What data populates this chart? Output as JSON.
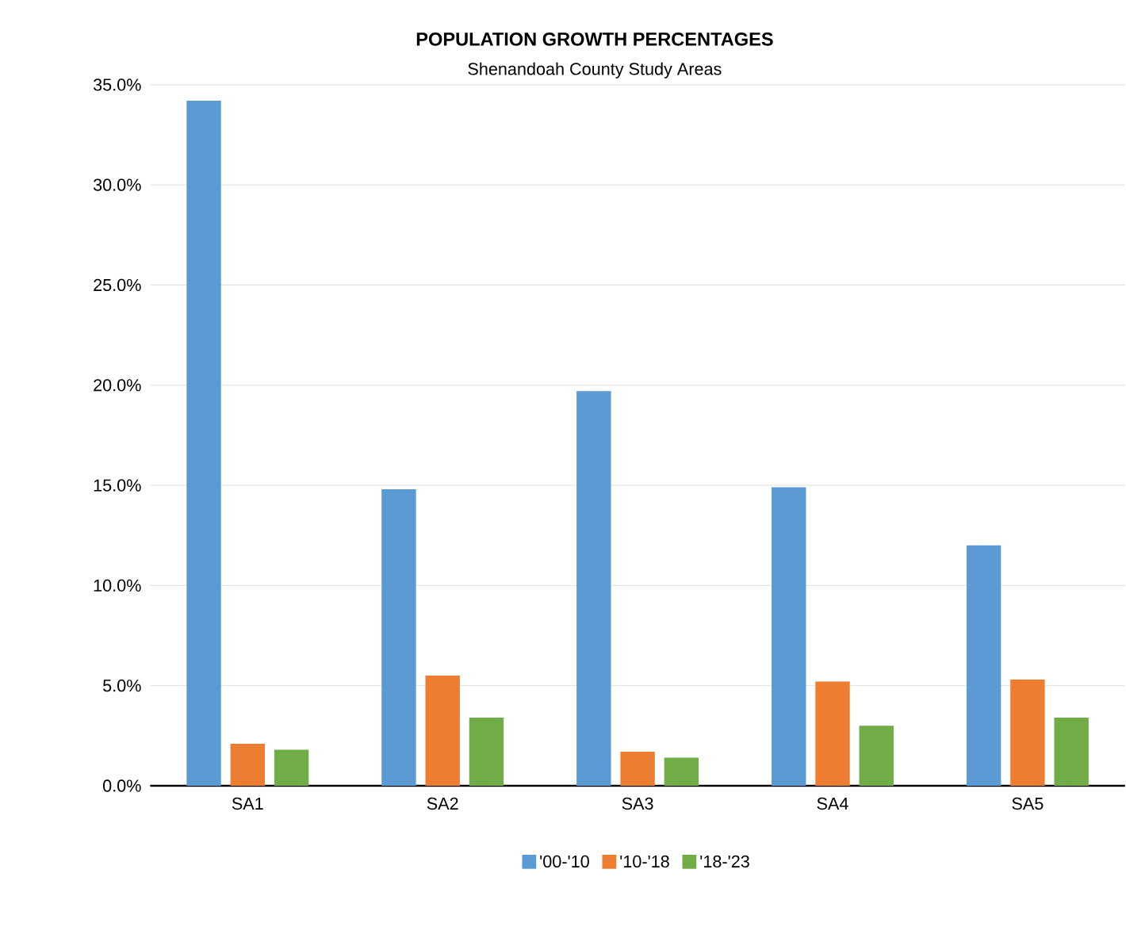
{
  "chart_data": {
    "type": "bar",
    "title": "POPULATION GROWTH PERCENTAGES",
    "subtitle": "Shenandoah County Study Areas",
    "categories": [
      "SA1",
      "SA2",
      "SA3",
      "SA4",
      "SA5"
    ],
    "series": [
      {
        "name": "'00-'10",
        "color": "#5b9bd5",
        "values": [
          34.2,
          14.8,
          19.7,
          14.9,
          12.0
        ]
      },
      {
        "name": "'10-'18",
        "color": "#ed7d31",
        "values": [
          2.1,
          5.5,
          1.7,
          5.2,
          5.3
        ]
      },
      {
        "name": "'18-'23",
        "color": "#70ad47",
        "values": [
          1.8,
          3.4,
          1.4,
          3.0,
          3.4
        ]
      }
    ],
    "ylim": [
      0,
      35
    ],
    "yticks": [
      {
        "value": 0,
        "label": "0.0%"
      },
      {
        "value": 5,
        "label": "5.0%"
      },
      {
        "value": 10,
        "label": "10.0%"
      },
      {
        "value": 15,
        "label": "15.0%"
      },
      {
        "value": 20,
        "label": "20.0%"
      },
      {
        "value": 25,
        "label": "25.0%"
      },
      {
        "value": 30,
        "label": "30.0%"
      },
      {
        "value": 35,
        "label": "35.0%"
      }
    ],
    "grid": "y",
    "legend": "bottom"
  }
}
